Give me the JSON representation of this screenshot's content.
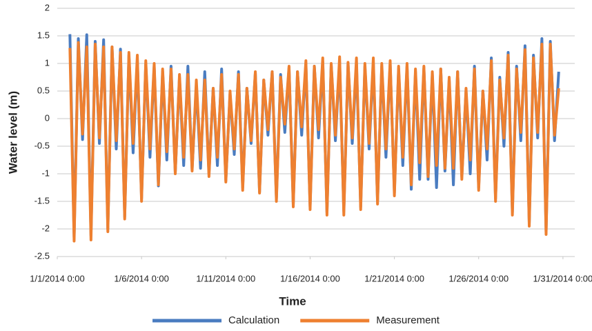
{
  "chart_data": {
    "type": "line",
    "x_label": "Time",
    "y_label": "Water level (m)",
    "xlim": [
      0,
      30.7
    ],
    "ylim": [
      -2.5,
      2
    ],
    "xticks": [
      {
        "value": 0,
        "label": "1/1/2014 0:00"
      },
      {
        "value": 5,
        "label": "1/6/2014 0:00"
      },
      {
        "value": 10,
        "label": "1/11/2014 0:00"
      },
      {
        "value": 15,
        "label": "1/16/2014 0:00"
      },
      {
        "value": 20,
        "label": "1/21/2014 0:00"
      },
      {
        "value": 25,
        "label": "1/26/2014 0:00"
      },
      {
        "value": 30,
        "label": "1/31/2014 0:00"
      }
    ],
    "yticks": [
      -2.5,
      -2,
      -1.5,
      -1,
      -0.5,
      0,
      0.5,
      1,
      1.5,
      2
    ],
    "grid": true,
    "legend": "bottom",
    "x": [
      0.75,
      1,
      1.25,
      1.5,
      1.75,
      2,
      2.25,
      2.5,
      2.75,
      3,
      3.25,
      3.5,
      3.75,
      4,
      4.25,
      4.5,
      4.75,
      5,
      5.25,
      5.5,
      5.75,
      6,
      6.25,
      6.5,
      6.75,
      7,
      7.25,
      7.5,
      7.75,
      8,
      8.25,
      8.5,
      8.75,
      9,
      9.25,
      9.5,
      9.75,
      10,
      10.25,
      10.5,
      10.75,
      11,
      11.25,
      11.5,
      11.75,
      12,
      12.25,
      12.5,
      12.75,
      13,
      13.25,
      13.5,
      13.75,
      14,
      14.25,
      14.5,
      14.75,
      15,
      15.25,
      15.5,
      15.75,
      16,
      16.25,
      16.5,
      16.75,
      17,
      17.25,
      17.5,
      17.75,
      18,
      18.25,
      18.5,
      18.75,
      19,
      19.25,
      19.5,
      19.75,
      20,
      20.25,
      20.5,
      20.75,
      21,
      21.25,
      21.5,
      21.75,
      22,
      22.25,
      22.5,
      22.75,
      23,
      23.25,
      23.5,
      23.75,
      24,
      24.25,
      24.5,
      24.75,
      25,
      25.25,
      25.5,
      25.75,
      26,
      26.25,
      26.5,
      26.75,
      27,
      27.25,
      27.5,
      27.75,
      28,
      28.25,
      28.5,
      28.75,
      29,
      29.25,
      29.5,
      29.75
    ],
    "series": [
      {
        "name": "Calculation",
        "color": "#4a7cc0",
        "values": [
          1.53,
          -2.15,
          1.45,
          -0.38,
          1.52,
          -2.12,
          1.4,
          -0.45,
          1.43,
          -2,
          1.3,
          -0.55,
          1.26,
          -1.78,
          1.15,
          -0.62,
          1.07,
          -1.45,
          1,
          -0.7,
          0.95,
          -1.22,
          0.85,
          -0.75,
          0.95,
          -0.98,
          0.75,
          -0.85,
          0.95,
          -0.92,
          0.6,
          -0.9,
          0.85,
          -1,
          0.55,
          -0.85,
          0.9,
          -1.12,
          0.45,
          -0.65,
          0.85,
          -1.25,
          0.55,
          -0.45,
          0.83,
          -1.33,
          0.7,
          -0.3,
          0.85,
          -1.45,
          0.8,
          -0.25,
          0.92,
          -1.55,
          0.85,
          -0.3,
          1,
          -1.6,
          0.95,
          -0.35,
          1.03,
          -1.7,
          0.98,
          -0.4,
          1.02,
          -1.68,
          1,
          -0.45,
          1,
          -1.6,
          0.95,
          -0.55,
          1,
          -1.5,
          0.95,
          -0.7,
          1,
          -1.35,
          0.9,
          -0.85,
          0.95,
          -1.28,
          0.85,
          -1.1,
          0.92,
          -1.1,
          0.8,
          -1.25,
          0.9,
          -0.95,
          0.7,
          -1.2,
          0.85,
          -1.05,
          0.5,
          -1,
          0.95,
          -1.25,
          0.5,
          -0.75,
          1.1,
          -1.45,
          0.75,
          -0.5,
          1.2,
          -1.7,
          0.95,
          -0.4,
          1.32,
          -1.9,
          1.15,
          -0.35,
          1.45,
          -2.05,
          1.4,
          -0.4,
          0.85
        ]
      },
      {
        "name": "Measurement",
        "color": "#ee8030",
        "values": [
          1.28,
          -2.22,
          1.38,
          -0.28,
          1.3,
          -2.2,
          1.35,
          -0.35,
          1.3,
          -2.05,
          1.3,
          -0.4,
          1.2,
          -1.82,
          1.2,
          -0.45,
          1.15,
          -1.5,
          1.05,
          -0.55,
          1,
          -1.2,
          0.9,
          -0.6,
          0.9,
          -1,
          0.8,
          -0.7,
          0.8,
          -0.95,
          0.7,
          -0.75,
          0.7,
          -1.05,
          0.55,
          -0.7,
          0.8,
          -1.15,
          0.5,
          -0.55,
          0.8,
          -1.3,
          0.55,
          -0.4,
          0.85,
          -1.35,
          0.7,
          -0.2,
          0.85,
          -1.5,
          0.75,
          -0.1,
          0.95,
          -1.6,
          0.85,
          -0.15,
          1.05,
          -1.65,
          0.95,
          -0.2,
          1.1,
          -1.75,
          1,
          -0.3,
          1.12,
          -1.75,
          1.02,
          -0.35,
          1.1,
          -1.65,
          1,
          -0.45,
          1.1,
          -1.55,
          1,
          -0.55,
          1.05,
          -1.4,
          0.95,
          -0.7,
          1,
          -1.2,
          0.9,
          -0.8,
          0.95,
          -1.05,
          0.85,
          -0.85,
          0.9,
          -0.9,
          0.75,
          -0.9,
          0.85,
          -1.1,
          0.55,
          -0.75,
          0.9,
          -1.3,
          0.5,
          -0.55,
          1.05,
          -1.5,
          0.7,
          -0.35,
          1.15,
          -1.75,
          0.9,
          -0.25,
          1.25,
          -1.95,
          1.1,
          -0.25,
          1.35,
          -2.1,
          1.35,
          -0.3,
          0.55
        ]
      }
    ]
  }
}
